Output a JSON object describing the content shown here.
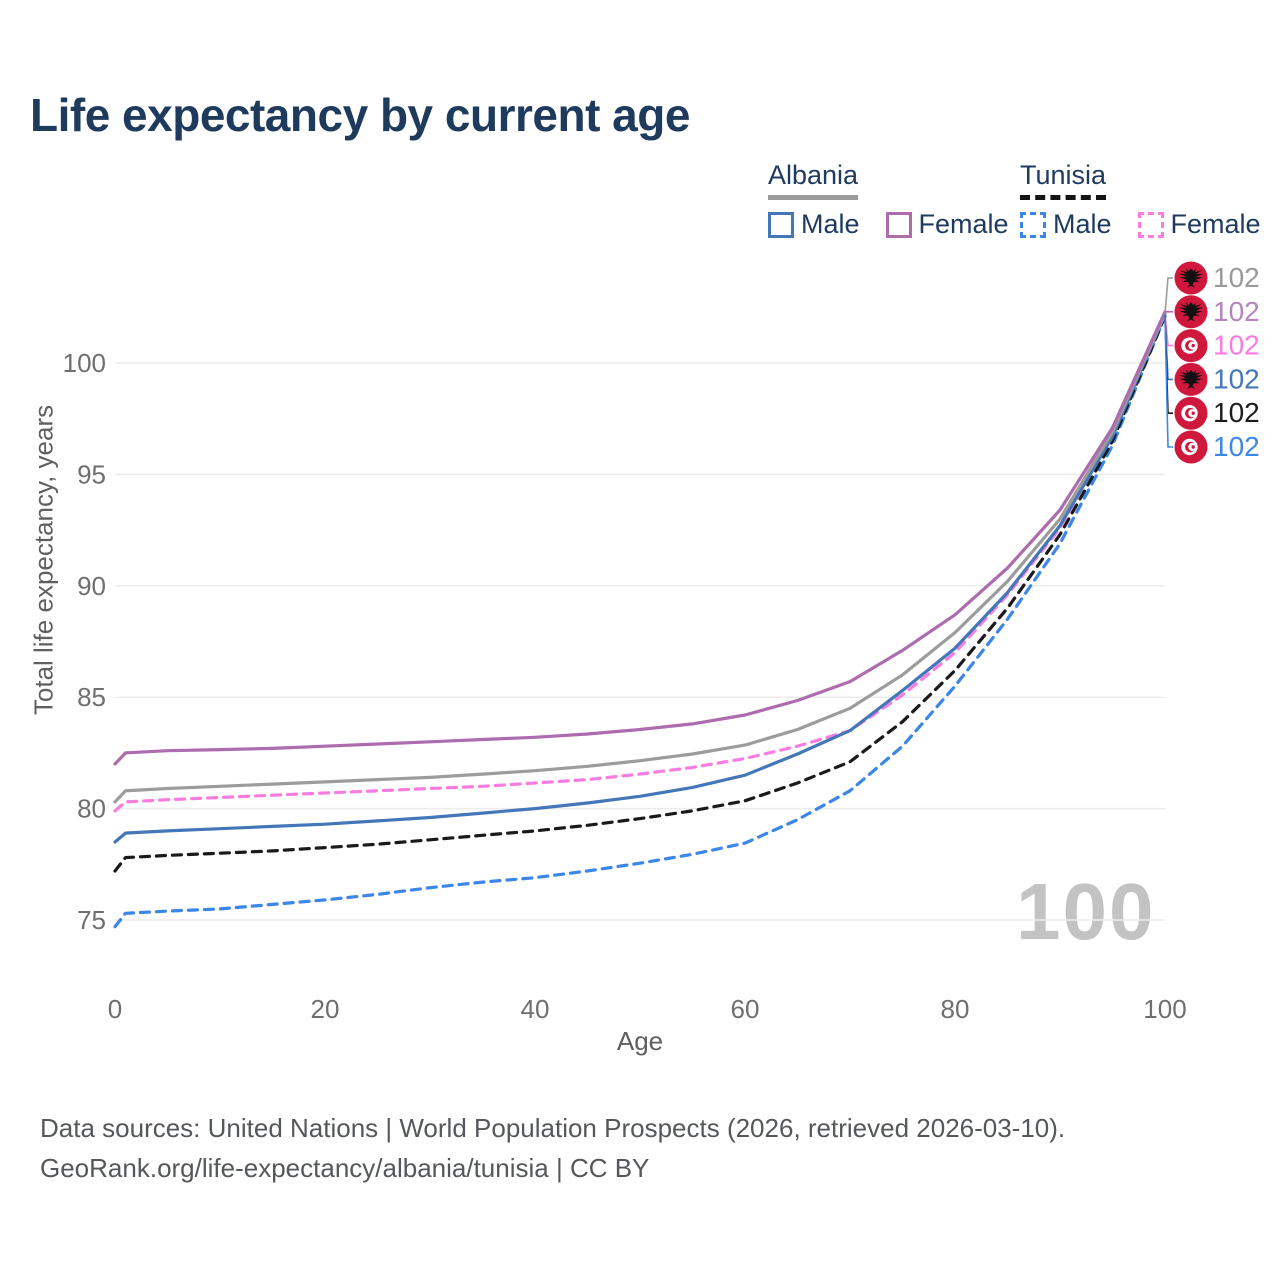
{
  "title": "Life expectancy by current age",
  "legend": {
    "groups": [
      {
        "country": "Albania",
        "line_style": "solid",
        "underline_color": "#9a9a9a",
        "items": [
          {
            "label": "Male",
            "color": "#4477b8",
            "dashed": false
          },
          {
            "label": "Female",
            "color": "#ad6cae",
            "dashed": false
          }
        ]
      },
      {
        "country": "Tunisia",
        "line_style": "dashed",
        "underline_color": "#141414",
        "items": [
          {
            "label": "Male",
            "color": "#3b86e8",
            "dashed": true
          },
          {
            "label": "Female",
            "color": "#fb7ce1",
            "dashed": true
          }
        ]
      }
    ]
  },
  "chart_data": {
    "type": "line",
    "title": "Life expectancy by current age",
    "xlabel": "Age",
    "ylabel": "Total life expectancy, years",
    "xlim": [
      0,
      100
    ],
    "ylim": [
      74,
      103
    ],
    "xticks": [
      0,
      20,
      40,
      60,
      80,
      100
    ],
    "yticks": [
      75,
      80,
      85,
      90,
      95,
      100
    ],
    "grid": true,
    "legend_position": "top-right",
    "x": [
      0,
      1,
      5,
      10,
      15,
      20,
      25,
      30,
      35,
      40,
      45,
      50,
      55,
      60,
      65,
      70,
      75,
      80,
      85,
      90,
      95,
      100
    ],
    "series": [
      {
        "name": "Albania Total",
        "country": "Albania",
        "line": "solid",
        "color": "#9c9c9c",
        "values": [
          80.3,
          80.8,
          80.9,
          81.0,
          81.1,
          81.2,
          81.3,
          81.4,
          81.55,
          81.7,
          81.9,
          82.15,
          82.45,
          82.85,
          83.55,
          84.5,
          86.0,
          87.9,
          90.2,
          93.0,
          96.9,
          102.2
        ]
      },
      {
        "name": "Albania Female",
        "country": "Albania",
        "line": "solid",
        "color": "#ad6cae",
        "values": [
          82.0,
          82.5,
          82.6,
          82.65,
          82.7,
          82.8,
          82.9,
          83.0,
          83.1,
          83.2,
          83.35,
          83.55,
          83.8,
          84.2,
          84.85,
          85.7,
          87.1,
          88.7,
          90.8,
          93.4,
          97.1,
          102.3
        ]
      },
      {
        "name": "Tunisia Female",
        "country": "Tunisia",
        "line": "dashed",
        "color": "#fb7ce1",
        "values": [
          79.9,
          80.3,
          80.4,
          80.5,
          80.6,
          80.7,
          80.8,
          80.9,
          81.0,
          81.15,
          81.3,
          81.55,
          81.85,
          82.25,
          82.8,
          83.5,
          85.1,
          87.0,
          89.6,
          92.6,
          96.8,
          102.2
        ]
      },
      {
        "name": "Albania Male",
        "country": "Albania",
        "line": "solid",
        "color": "#4477b8",
        "values": [
          78.5,
          78.9,
          79.0,
          79.1,
          79.2,
          79.3,
          79.45,
          79.6,
          79.8,
          80.0,
          80.25,
          80.55,
          80.95,
          81.5,
          82.45,
          83.5,
          85.3,
          87.2,
          89.7,
          92.7,
          96.7,
          102.2
        ]
      },
      {
        "name": "Tunisia Total",
        "country": "Tunisia",
        "line": "dashed",
        "color": "#1a1a1a",
        "values": [
          77.2,
          77.8,
          77.9,
          78.0,
          78.1,
          78.25,
          78.4,
          78.6,
          78.8,
          79.0,
          79.25,
          79.55,
          79.9,
          80.35,
          81.15,
          82.1,
          83.9,
          86.2,
          89.0,
          92.3,
          96.5,
          102.1
        ]
      },
      {
        "name": "Tunisia Male",
        "country": "Tunisia",
        "line": "dashed",
        "color": "#3b86e8",
        "values": [
          74.7,
          75.3,
          75.4,
          75.5,
          75.7,
          75.9,
          76.15,
          76.45,
          76.7,
          76.9,
          77.2,
          77.55,
          77.95,
          78.45,
          79.5,
          80.8,
          82.8,
          85.5,
          88.5,
          91.9,
          96.3,
          102.1
        ]
      }
    ],
    "end_labels": [
      {
        "flag": "albania",
        "value": "102",
        "color": "#9a9a9a"
      },
      {
        "flag": "albania",
        "value": "102",
        "color": "#b585bd"
      },
      {
        "flag": "tunisia",
        "value": "102",
        "color": "#fb7ce1"
      },
      {
        "flag": "albania",
        "value": "102",
        "color": "#4578b9"
      },
      {
        "flag": "tunisia",
        "value": "102",
        "color": "#1c1c1c"
      },
      {
        "flag": "tunisia",
        "value": "102",
        "color": "#3d87e8"
      }
    ],
    "flag_red": "#d0173c"
  },
  "watermark": "100",
  "footer": {
    "line1": "Data sources: United Nations | World Population Prospects (2026, retrieved 2026-03-10).",
    "line2": "GeoRank.org/life-expectancy/albania/tunisia | CC BY"
  }
}
